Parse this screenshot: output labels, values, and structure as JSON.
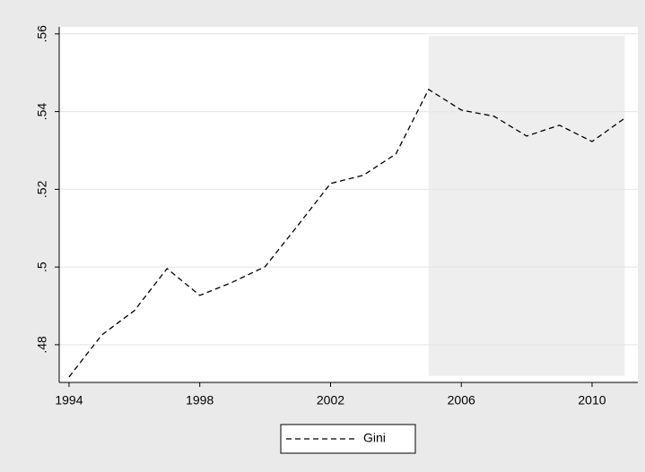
{
  "chart_data": {
    "type": "line",
    "x": [
      1994,
      1995,
      1996,
      1997,
      1998,
      1999,
      2000,
      2001,
      2002,
      2003,
      2004,
      2005,
      2006,
      2007,
      2008,
      2009,
      2010,
      2011
    ],
    "series": [
      {
        "name": "Gini",
        "color": "#000000",
        "dash": true,
        "values": [
          0.4717,
          0.4825,
          0.4888,
          0.4996,
          0.4927,
          0.4961,
          0.5001,
          0.5107,
          0.5215,
          0.5236,
          0.5291,
          0.5457,
          0.5404,
          0.5388,
          0.5337,
          0.5365,
          0.5323,
          0.5383
        ]
      }
    ],
    "xlim": [
      1993.7,
      2011.4
    ],
    "xticks": [
      1994,
      1998,
      2002,
      2006,
      2010
    ],
    "ylim": [
      0.4703,
      0.5618
    ],
    "yticks": [
      {
        "value": 0.48,
        "label": ".48"
      },
      {
        "value": 0.5,
        "label": ".5"
      },
      {
        "value": 0.52,
        "label": ".52"
      },
      {
        "value": 0.54,
        "label": ".54"
      },
      {
        "value": 0.56,
        "label": ".56"
      }
    ],
    "grid": true,
    "shaded_region": {
      "x": [
        2005,
        2011
      ],
      "y": [
        0.472,
        0.5595
      ],
      "color": "#eeeeee"
    },
    "legend": "bottom"
  }
}
